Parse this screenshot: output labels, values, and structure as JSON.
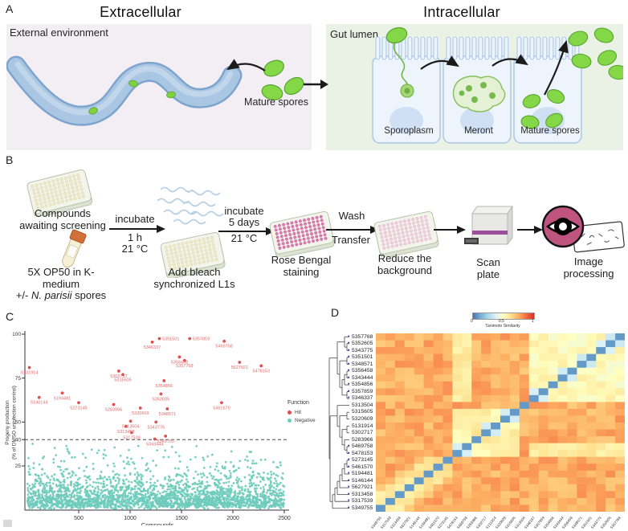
{
  "figure": {
    "panel_a": {
      "label": "A",
      "title_left": "Extracellular",
      "title_right": "Intracellular",
      "external_env": "External environment",
      "gut_lumen": "Gut lumen",
      "mature_spores": "Mature spores",
      "cell_labels": {
        "sporoplasm": "Sporoplasm",
        "meront": "Meront",
        "mature_spores": "Mature spores"
      },
      "colors": {
        "left_bg": "#f3eef4",
        "right_bg": "#e9f2e4",
        "spore_green": "#84d747",
        "spore_outline": "#58a332",
        "worm_blue": "#a9c6e3",
        "cell_fill": "#eef4fb",
        "cell_outline": "#a9c4e8"
      }
    },
    "panel_b": {
      "label": "B",
      "step1": {
        "line1": "Compounds",
        "line2": "awaiting screening"
      },
      "tube": {
        "line1": "5X OP50 in K-",
        "line2": "medium",
        "line3_prefix": "+/- ",
        "line3_italic": "N. parisii",
        "line3_suffix": " spores"
      },
      "arrow1": {
        "top": "incubate",
        "mid": "1 h",
        "bottom": "21 °C"
      },
      "step2": {
        "line1": "Add bleach",
        "line2": "synchronized L1s"
      },
      "arrow2": {
        "top": "incubate",
        "mid": "5 days",
        "bottom": "21 °C"
      },
      "step3": {
        "line1": "Rose Bengal",
        "line2": "staining"
      },
      "arrow3": {
        "top": "Wash",
        "bottom": "Transfer"
      },
      "step4": {
        "line1": "Reduce the",
        "line2": "background"
      },
      "step5": {
        "line1": "Scan",
        "line2": "plate"
      },
      "step6": {
        "line1": "Image",
        "line2": "processing"
      },
      "plate_colors": {
        "cream": "#eee8c6",
        "cream_stroke": "#d6cf9f",
        "stained": "#dd7ab0",
        "stained_stroke": "#bb5692",
        "washed": "#f2cfe0",
        "washed_stroke": "#d9a8c4"
      }
    },
    "panel_c": {
      "label": "C"
    },
    "panel_d": {
      "label": "D"
    }
  },
  "chart_data": [
    {
      "type": "scatter",
      "xlabel": "Compounds",
      "ylabel_line1": "Progeny production",
      "ylabel_line2": "(% of DMSO uninfection control)",
      "xlim": [
        0,
        2500
      ],
      "ylim": [
        0,
        100
      ],
      "xticks": [
        500,
        1000,
        1500,
        2000,
        2500
      ],
      "yticks": [
        100,
        75,
        50,
        40,
        25
      ],
      "threshold_line": 40,
      "legend": {
        "title": "Function",
        "items": [
          {
            "label": "Hit",
            "color": "#e04f4f"
          },
          {
            "label": "Negative",
            "color": "#6fccbc"
          }
        ]
      },
      "hit_color": "#e04f4f",
      "hit_label_color": "#e06c6c",
      "negative_color": "#6fccbc",
      "hits": [
        {
          "id": "5131914",
          "x": 20,
          "y": 81
        },
        {
          "id": "5146144",
          "x": 115,
          "y": 64
        },
        {
          "id": "5194481",
          "x": 340,
          "y": 66.5
        },
        {
          "id": "5273145",
          "x": 500,
          "y": 61
        },
        {
          "id": "5283966",
          "x": 840,
          "y": 60
        },
        {
          "id": "5302717",
          "x": 890,
          "y": 79
        },
        {
          "id": "5315605",
          "x": 930,
          "y": 77
        },
        {
          "id": "5313458",
          "x": 960,
          "y": 47.5
        },
        {
          "id": "5313504",
          "x": 1005,
          "y": 50.5
        },
        {
          "id": "5317539",
          "x": 1015,
          "y": 44
        },
        {
          "id": "5320609",
          "x": 1100,
          "y": 58
        },
        {
          "id": "5346337",
          "x": 1215,
          "y": 95.5
        },
        {
          "id": "5343444",
          "x": 1240,
          "y": 40.3
        },
        {
          "id": "5343775",
          "x": 1252,
          "y": 50
        },
        {
          "id": "5351501",
          "x": 1285,
          "y": 97.5,
          "label_side": "right"
        },
        {
          "id": "5352605",
          "x": 1300,
          "y": 66
        },
        {
          "id": "5354856",
          "x": 1330,
          "y": 73.5
        },
        {
          "id": "5349755",
          "x": 1345,
          "y": 42
        },
        {
          "id": "5348571",
          "x": 1362,
          "y": 57.5
        },
        {
          "id": "5356458",
          "x": 1480,
          "y": 87
        },
        {
          "id": "5357768",
          "x": 1530,
          "y": 85
        },
        {
          "id": "5357859",
          "x": 1580,
          "y": 97.5,
          "label_side": "right"
        },
        {
          "id": "5461570",
          "x": 1890,
          "y": 61
        },
        {
          "id": "5469758",
          "x": 1915,
          "y": 96
        },
        {
          "id": "5627921",
          "x": 2065,
          "y": 84
        },
        {
          "id": "5478153",
          "x": 2275,
          "y": 82
        }
      ],
      "negatives": {
        "count": 2400,
        "x_range": [
          1,
          2500
        ],
        "y_max": 38,
        "y_distribution": "exponential, mean ~9, all below threshold 40",
        "seed": 7
      }
    },
    {
      "type": "heatmap",
      "colorbar": {
        "title": "Tanimoto Similarity",
        "tick_labels": [
          "0",
          "0.5",
          "1"
        ]
      },
      "colormap_stops": [
        [
          0,
          "#4575b4"
        ],
        [
          0.12,
          "#74add1"
        ],
        [
          0.25,
          "#abd9e9"
        ],
        [
          0.38,
          "#e0f3f8"
        ],
        [
          0.5,
          "#ffffbf"
        ],
        [
          0.62,
          "#fee090"
        ],
        [
          0.75,
          "#fdae61"
        ],
        [
          0.87,
          "#f46d43"
        ],
        [
          1,
          "#d73027"
        ]
      ],
      "rows": [
        {
          "id": "5357768",
          "dot": true
        },
        {
          "id": "5352605",
          "dot": true
        },
        {
          "id": "5343775",
          "dot": true
        },
        {
          "id": "5351501",
          "dot": true
        },
        {
          "id": "5348571",
          "dot": true
        },
        {
          "id": "5356458",
          "dot": true
        },
        {
          "id": "5343444",
          "dot": true
        },
        {
          "id": "5354856",
          "dot": true
        },
        {
          "id": "5357859",
          "dot": true
        },
        {
          "id": "5346337",
          "dot": true
        },
        {
          "id": "5313504",
          "dot": false
        },
        {
          "id": "5315605",
          "dot": false
        },
        {
          "id": "5320609",
          "dot": false
        },
        {
          "id": "5131914",
          "dot": false
        },
        {
          "id": "5302717",
          "dot": false
        },
        {
          "id": "5283966",
          "dot": false
        },
        {
          "id": "5469758",
          "dot": true
        },
        {
          "id": "5478153",
          "dot": true
        },
        {
          "id": "5273145",
          "dot": true
        },
        {
          "id": "5461570",
          "dot": true
        },
        {
          "id": "5194481",
          "dot": true
        },
        {
          "id": "5146144",
          "dot": true
        },
        {
          "id": "5627921",
          "dot": true
        },
        {
          "id": "5313458",
          "dot": true
        },
        {
          "id": "5317539",
          "dot": true
        },
        {
          "id": "5349755",
          "dot": true
        }
      ],
      "col_order": "reverse_of_rows",
      "value_model": {
        "base": 0.74,
        "base_noise": 0.07,
        "cluster_a": [
          0,
          9
        ],
        "cluster_b": [
          11,
          17
        ],
        "cluster_c": [
          18,
          25
        ],
        "intra_a": 0.52,
        "intra_b": 0.56,
        "intra_c_near": 0.6,
        "pair_cells": [
          [
            0,
            1
          ],
          [
            1,
            2
          ],
          [
            3,
            4
          ],
          [
            5,
            6
          ],
          [
            8,
            9
          ],
          [
            11,
            12
          ],
          [
            13,
            14
          ],
          [
            16,
            17
          ]
        ],
        "pair_value": 0.32,
        "stripe_rows": [
          16,
          17
        ],
        "stripe_value": 0.58,
        "diagonal": 0.08,
        "seed": 42
      },
      "dendrogram": [
        [
          [
            "5357768",
            [
              "5352605",
              "5343775"
            ]
          ],
          [
            [
              "5351501",
              "5348571"
            ],
            [
              [
                [
                  "5356458",
                  "5343444"
                ],
                "5354856"
              ],
              [
                "5357859",
                "5346337"
              ]
            ]
          ]
        ],
        [
          [
            "5313504",
            [
              [
                "5315605",
                "5320609"
              ],
              [
                [
                  "5131914",
                  "5302717"
                ],
                [
                  "5283966",
                  [
                    "5469758",
                    "5478153"
                  ]
                ]
              ]
            ]
          ],
          [
            [
              [
                [
                  [
                    [
                      [
                        "5273145",
                        "5461570"
                      ],
                      "5194481"
                    ],
                    "5146144"
                  ],
                  "5627921"
                ],
                "5313458"
              ],
              "5317539"
            ],
            "5349755"
          ]
        ]
      ]
    }
  ]
}
